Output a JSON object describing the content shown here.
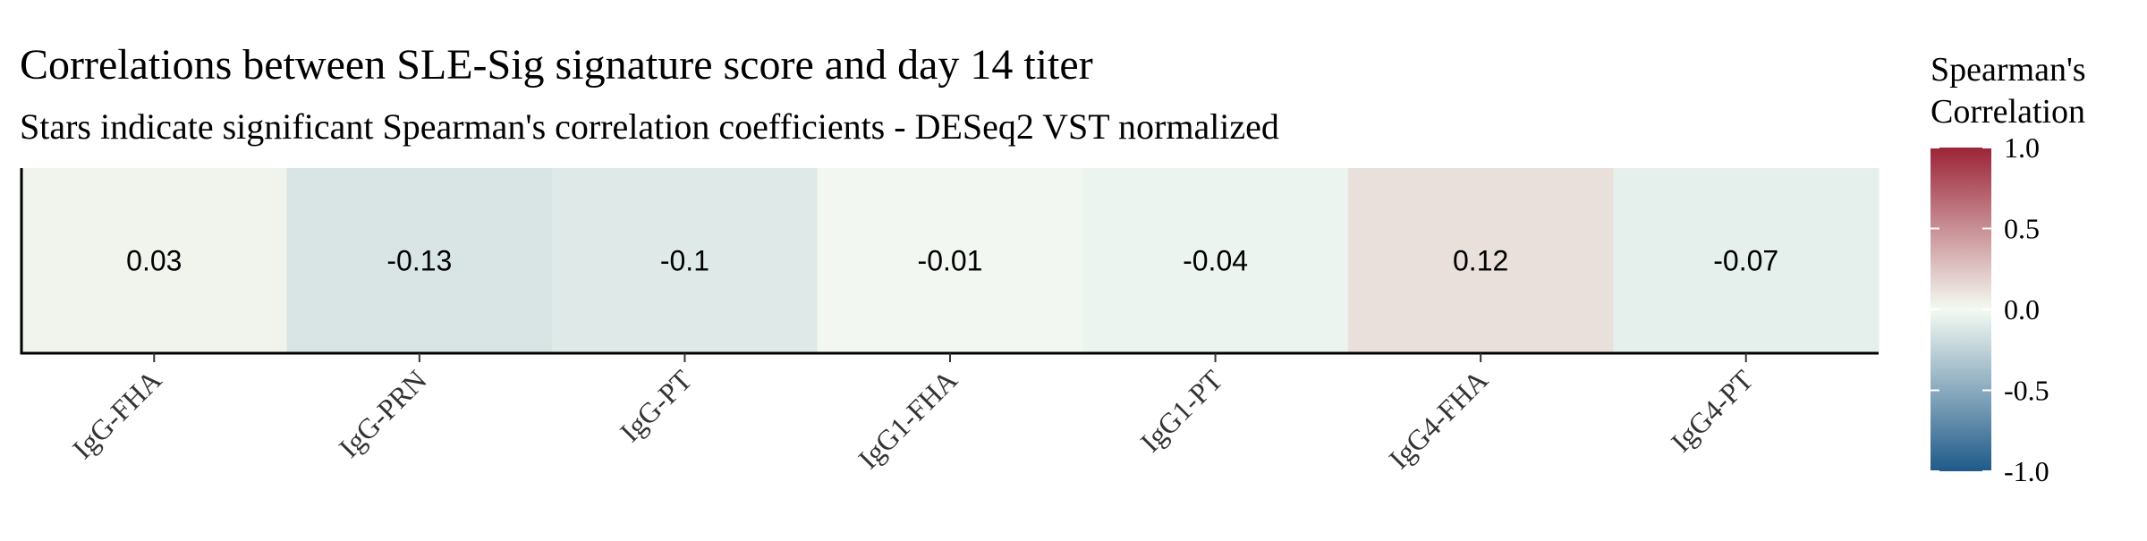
{
  "chart_data": {
    "type": "heatmap",
    "title": "Correlations between SLE-Sig signature score and day 14 titer",
    "subtitle": "Stars indicate significant Spearman's correlation coefficients - DESeq2 VST normalized",
    "categories": [
      "IgG-FHA",
      "IgG-PRN",
      "IgG-PT",
      "IgG1-FHA",
      "IgG1-PT",
      "IgG4-FHA",
      "IgG4-PT"
    ],
    "values": [
      0.03,
      -0.13,
      -0.1,
      -0.01,
      -0.04,
      0.12,
      -0.07
    ],
    "value_labels": [
      "0.03",
      "-0.13",
      "-0.1",
      "-0.01",
      "-0.04",
      "0.12",
      "-0.07"
    ],
    "legend": {
      "title_line1": "Spearman's",
      "title_line2": "Correlation",
      "range": [
        -1.0,
        1.0
      ],
      "ticks": [
        1.0,
        0.5,
        0.0,
        -0.5,
        -1.0
      ],
      "tick_labels": [
        "1.0",
        "0.5",
        "0.0",
        "-0.5",
        "-1.0"
      ],
      "placement": "right"
    },
    "colors": {
      "low": "#1f5a8a",
      "mid": "#f4faf2",
      "high": "#9c2438"
    }
  }
}
